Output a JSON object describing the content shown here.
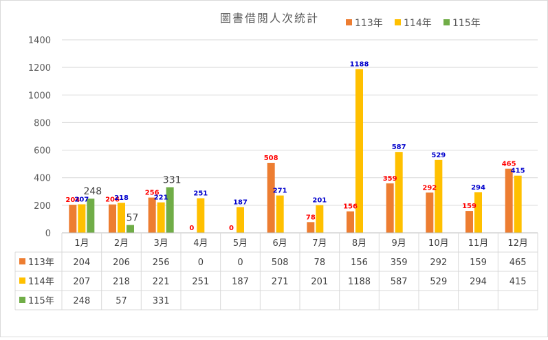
{
  "chart_data": {
    "type": "bar",
    "title": "圖書借閱人次統計",
    "categories": [
      "1月",
      "2月",
      "3月",
      "4月",
      "5月",
      "6月",
      "7月",
      "8月",
      "9月",
      "10月",
      "11月",
      "12月"
    ],
    "series": [
      {
        "name": "113年",
        "color": "#ED7D31",
        "label_color": "#FF0000",
        "values": [
          204,
          206,
          256,
          0,
          0,
          508,
          78,
          156,
          359,
          292,
          159,
          465
        ]
      },
      {
        "name": "114年",
        "color": "#FFC000",
        "label_color": "#0000CC",
        "values": [
          207,
          218,
          221,
          251,
          187,
          271,
          201,
          1188,
          587,
          529,
          294,
          415
        ]
      },
      {
        "name": "115年",
        "color": "#70AD47",
        "label_color": "#404040",
        "values": [
          248,
          57,
          331,
          null,
          null,
          null,
          null,
          null,
          null,
          null,
          null,
          null
        ]
      }
    ],
    "ylim": [
      0,
      1400
    ],
    "yticks": [
      0,
      200,
      400,
      600,
      800,
      1000,
      1200,
      1400
    ],
    "grid": true,
    "legend_position": "top",
    "data_table": true
  }
}
